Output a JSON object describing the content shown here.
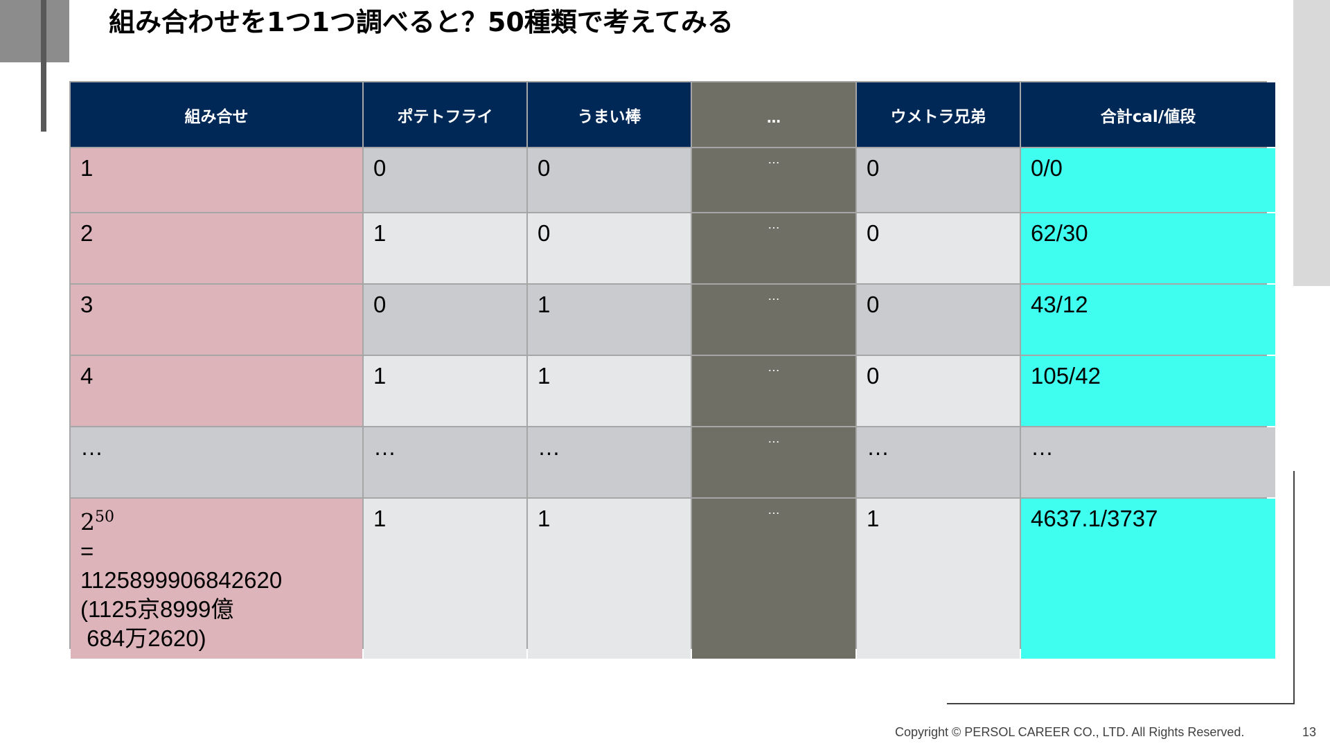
{
  "title": "組み合わせを1つ1つ調べると？50種類で考えてみる",
  "table": {
    "headers": [
      "組み合せ",
      "ポテトフライ",
      "うまい棒",
      "…",
      "ウメトラ兄弟",
      "合計cal/値段"
    ],
    "rows": [
      [
        "1",
        "0",
        "0",
        "…",
        "0",
        "0/0"
      ],
      [
        "2",
        "1",
        "0",
        "…",
        "0",
        "62/30"
      ],
      [
        "3",
        "0",
        "1",
        "…",
        "0",
        "43/12"
      ],
      [
        "4",
        "1",
        "1",
        "…",
        "0",
        "105/42"
      ],
      [
        "…",
        "…",
        "…",
        "…",
        "…",
        "…"
      ],
      [
        "",
        "1",
        "1",
        "…",
        "1",
        "4637.1/3737"
      ]
    ],
    "last_row_count": {
      "base": "2",
      "exponent": "50",
      "equals": "=",
      "value": "1125899906842620",
      "kanji_line1": "(1125京8999億",
      "kanji_line2": " 684万2620)"
    }
  },
  "colors": {
    "header_bg": "#002856",
    "count_col": "#ddb4b9",
    "row_dark": "#cacbce",
    "row_light": "#e6e7e8",
    "total_col": "#3ffeef",
    "ellipsis_col": "#6f6f66"
  },
  "footer": {
    "copyright": "Copyright © PERSOL CAREER CO., LTD. All Rights Reserved.",
    "page_number": "13"
  }
}
